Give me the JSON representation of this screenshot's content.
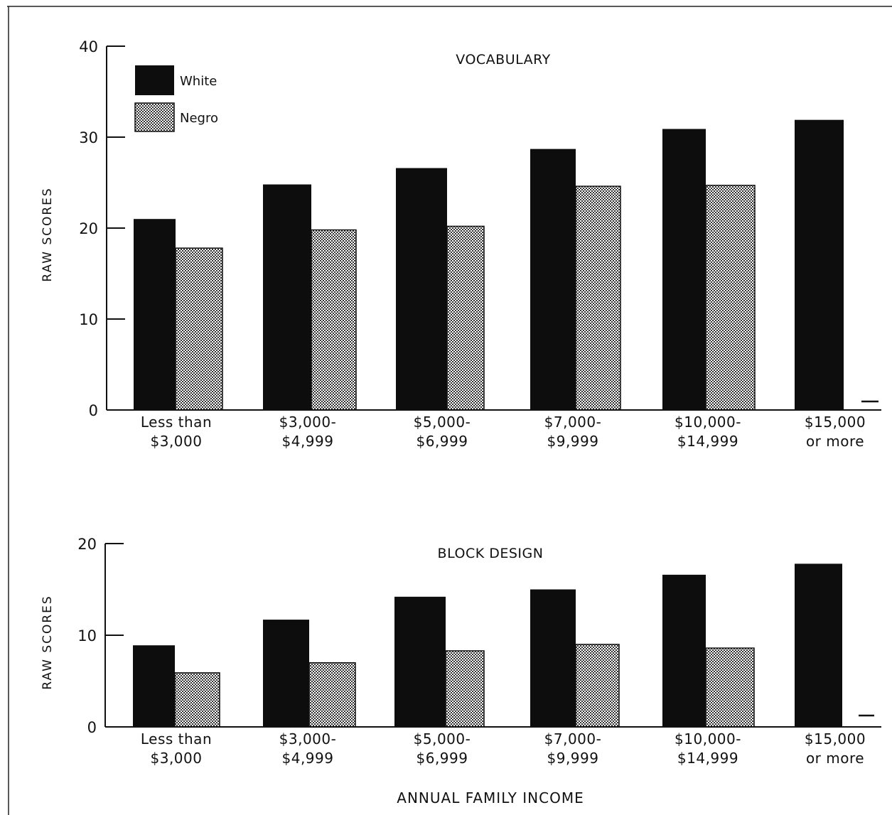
{
  "colors": {
    "white_series": "#0d0d0d",
    "negro_series": "#d8d8d8",
    "axis": "#111111"
  },
  "legend": [
    {
      "name": "White",
      "style": "solid"
    },
    {
      "name": "Negro",
      "style": "stippled"
    }
  ],
  "xlabel": "ANNUAL FAMILY INCOME",
  "chart_data": [
    {
      "type": "bar",
      "title": "VOCABULARY",
      "ylabel": "RAW SCORES",
      "ylim": [
        0,
        40
      ],
      "yticks": [
        0,
        10,
        20,
        30,
        40
      ],
      "categories": [
        [
          "Less than",
          "$3,000"
        ],
        [
          "$3,000-",
          "$4,999"
        ],
        [
          "$5,000-",
          "$6,999"
        ],
        [
          "$7,000-",
          "$9,999"
        ],
        [
          "$10,000-",
          "$14,999"
        ],
        [
          "$15,000",
          "or more"
        ]
      ],
      "series": [
        {
          "name": "White",
          "values": [
            21,
            24.8,
            26.6,
            28.7,
            30.9,
            31.9
          ]
        },
        {
          "name": "Negro",
          "values": [
            17.8,
            19.8,
            20.2,
            24.6,
            24.7,
            null
          ]
        }
      ],
      "legend_position": "top-left",
      "grid": false
    },
    {
      "type": "bar",
      "title": "BLOCK DESIGN",
      "ylabel": "RAW SCORES",
      "ylim": [
        0,
        20
      ],
      "yticks": [
        0,
        10,
        20
      ],
      "categories": [
        [
          "Less than",
          "$3,000"
        ],
        [
          "$3,000-",
          "$4,999"
        ],
        [
          "$5,000-",
          "$6,999"
        ],
        [
          "$7,000-",
          "$9,999"
        ],
        [
          "$10,000-",
          "$14,999"
        ],
        [
          "$15,000",
          "or more"
        ]
      ],
      "series": [
        {
          "name": "White",
          "values": [
            8.9,
            11.7,
            14.2,
            15,
            16.6,
            17.8
          ]
        },
        {
          "name": "Negro",
          "values": [
            5.9,
            7,
            8.3,
            9,
            8.6,
            null
          ]
        }
      ],
      "grid": false
    }
  ]
}
